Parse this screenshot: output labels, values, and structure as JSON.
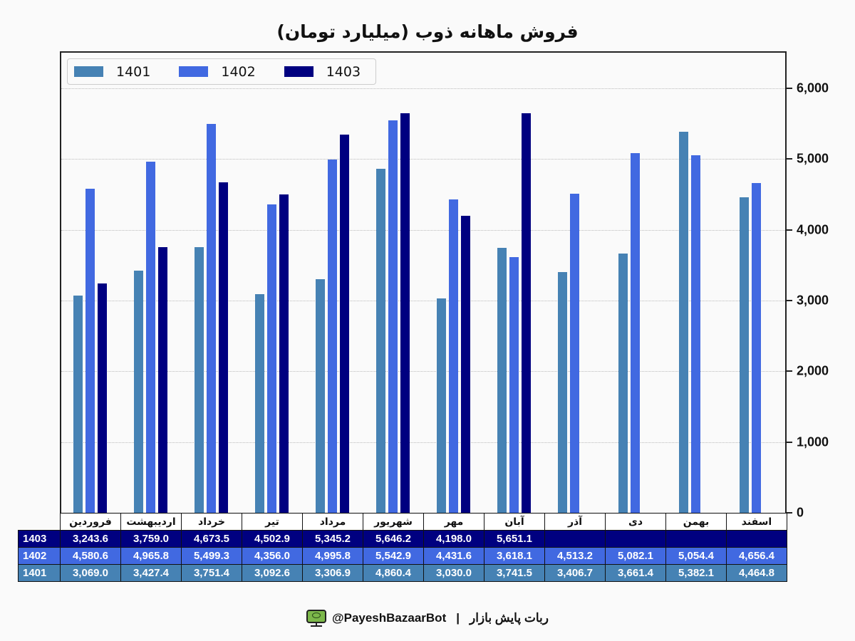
{
  "title": "فروش ماهانه ذوب (میلیارد تومان)",
  "colors": {
    "1401": "#4682b4",
    "1402": "#4169e1",
    "1403": "#000080"
  },
  "legend": [
    {
      "label": "1401",
      "color": "#4682b4"
    },
    {
      "label": "1402",
      "color": "#4169e1"
    },
    {
      "label": "1403",
      "color": "#000080"
    }
  ],
  "y_axis": {
    "ticks": [
      "0",
      "1,000",
      "2,000",
      "3,000",
      "4,000",
      "5,000",
      "6,000"
    ]
  },
  "table": {
    "months": [
      "فروردین",
      "اردیبهشت",
      "خرداد",
      "تیر",
      "مرداد",
      "شهریور",
      "مهر",
      "آبان",
      "آذر",
      "دی",
      "بهمن",
      "اسفند"
    ],
    "rows": [
      {
        "label": "1403",
        "values": [
          "3,243.6",
          "3,759.0",
          "4,673.5",
          "4,502.9",
          "5,345.2",
          "5,646.2",
          "4,198.0",
          "5,651.1",
          "",
          "",
          "",
          ""
        ]
      },
      {
        "label": "1402",
        "values": [
          "4,580.6",
          "4,965.8",
          "5,499.3",
          "4,356.0",
          "4,995.8",
          "5,542.9",
          "4,431.6",
          "3,618.1",
          "4,513.2",
          "5,082.1",
          "5,054.4",
          "4,656.4"
        ]
      },
      {
        "label": "1401",
        "values": [
          "3,069.0",
          "3,427.4",
          "3,751.4",
          "3,092.6",
          "3,306.9",
          "4,860.4",
          "3,030.0",
          "3,741.5",
          "3,406.7",
          "3,661.4",
          "5,382.1",
          "4,464.8"
        ]
      }
    ]
  },
  "footer": {
    "handle": "@PayeshBazaarBot",
    "separator": "|",
    "bot_name": "ربات پایش بازار",
    "icon": "monitor-bot-icon"
  },
  "chart_data": {
    "type": "bar",
    "title": "فروش ماهانه ذوب (میلیارد تومان)",
    "xlabel": "",
    "ylabel": "",
    "ylim": [
      0,
      6500
    ],
    "y_ticks": [
      0,
      1000,
      2000,
      3000,
      4000,
      5000,
      6000
    ],
    "y_axis_position": "right",
    "grid": "horizontal dotted",
    "legend_position": "upper left",
    "categories": [
      "فروردین",
      "اردیبهشت",
      "خرداد",
      "تیر",
      "مرداد",
      "شهریور",
      "مهر",
      "آبان",
      "آذر",
      "دی",
      "بهمن",
      "اسفند"
    ],
    "series": [
      {
        "name": "1401",
        "color": "#4682b4",
        "values": [
          3069.0,
          3427.4,
          3751.4,
          3092.6,
          3306.9,
          4860.4,
          3030.0,
          3741.5,
          3406.7,
          3661.4,
          5382.1,
          4464.8
        ]
      },
      {
        "name": "1402",
        "color": "#4169e1",
        "values": [
          4580.6,
          4965.8,
          5499.3,
          4356.0,
          4995.8,
          5542.9,
          4431.6,
          3618.1,
          4513.2,
          5082.1,
          5054.4,
          4656.4
        ]
      },
      {
        "name": "1403",
        "color": "#000080",
        "values": [
          3243.6,
          3759.0,
          4673.5,
          4502.9,
          5345.2,
          5646.2,
          4198.0,
          5651.1,
          null,
          null,
          null,
          null
        ]
      }
    ]
  }
}
